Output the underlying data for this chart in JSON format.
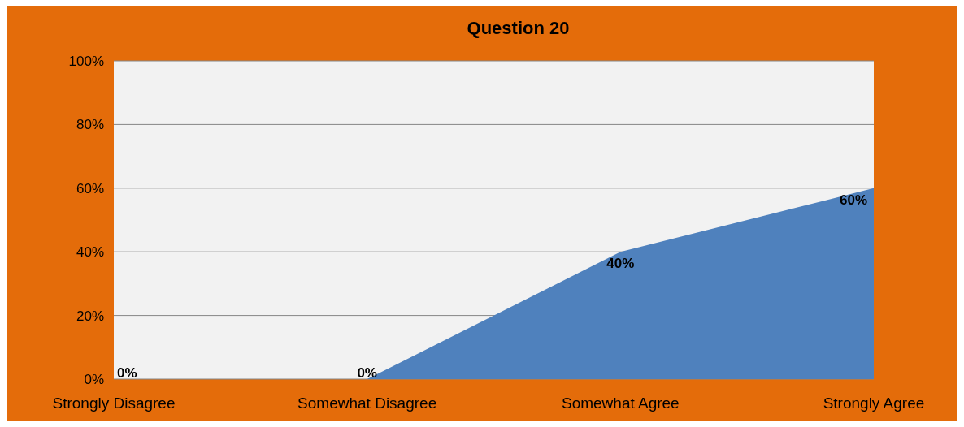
{
  "chart_data": {
    "type": "area",
    "title": "Question 20",
    "categories": [
      "Strongly Disagree",
      "Somewhat Disagree",
      "Somewhat Agree",
      "Strongly Agree"
    ],
    "values": [
      0,
      0,
      40,
      60
    ],
    "color": "#4f81bd",
    "value_labels": [
      "0%",
      "0%",
      "40%",
      "60%"
    ],
    "ylim": [
      0,
      100
    ],
    "yticks": [
      {
        "value": 0,
        "label": "0%"
      },
      {
        "value": 20,
        "label": "20%"
      },
      {
        "value": 40,
        "label": "40%"
      },
      {
        "value": 60,
        "label": "60%"
      },
      {
        "value": 80,
        "label": "80%"
      },
      {
        "value": 100,
        "label": "100%"
      }
    ],
    "grid": "y"
  }
}
